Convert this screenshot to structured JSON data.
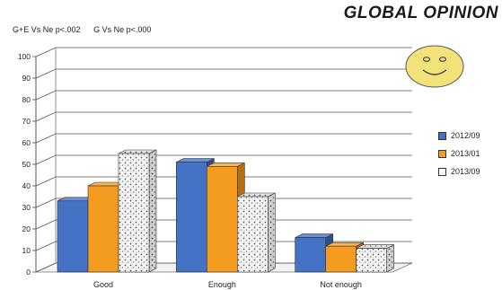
{
  "header": {
    "title": "GLOBAL OPINION",
    "stat1": "G+E Vs Ne p<.002",
    "stat2": "G Vs Ne p<.000"
  },
  "icons": {
    "smiley": "smiley-face-icon"
  },
  "colors": {
    "s1": "#4472c4",
    "s2": "#f39c1f",
    "s3": "#f4f4f4",
    "grid": "#444444"
  },
  "chart_data": {
    "type": "bar",
    "categories": [
      "Good",
      "Enough",
      "Not enough"
    ],
    "series": [
      {
        "name": "2012/09",
        "values": [
          33,
          51,
          16
        ]
      },
      {
        "name": "2013/01",
        "values": [
          40,
          49,
          12
        ]
      },
      {
        "name": "2013/09",
        "values": [
          55,
          35,
          11
        ]
      }
    ],
    "ylim": [
      0,
      100
    ],
    "yticks": [
      0,
      10,
      20,
      30,
      40,
      50,
      60,
      70,
      80,
      90,
      100
    ],
    "grid": true,
    "legend": "right",
    "style": "3d-clustered-column"
  }
}
